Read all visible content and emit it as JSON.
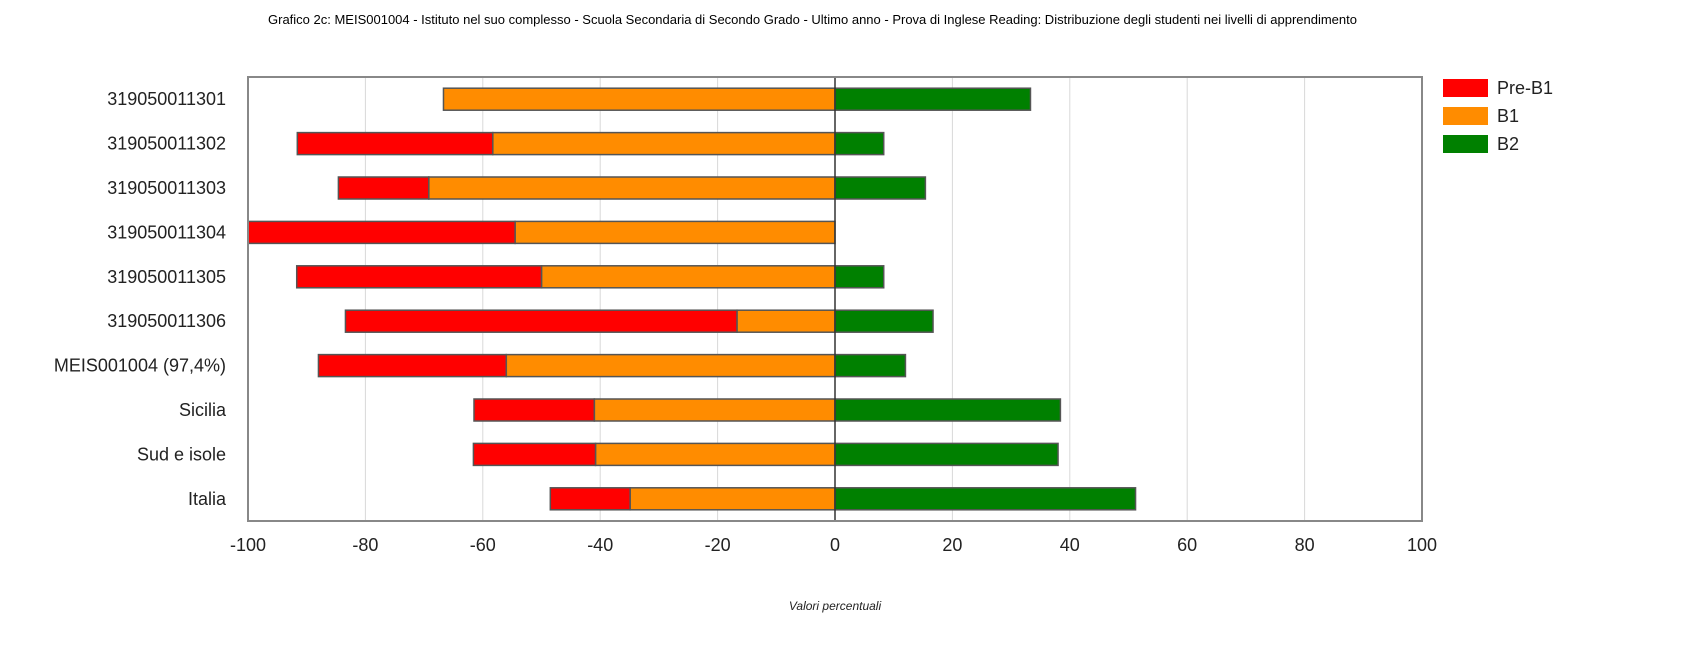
{
  "chart_data": {
    "type": "bar",
    "orientation": "horizontal",
    "stacking": "diverging",
    "title": "Grafico 2c: MEIS001004 - Istituto nel suo complesso - Scuola Secondaria di Secondo Grado - Ultimo anno - Prova di Inglese Reading: Distribuzione degli studenti nei livelli di apprendimento",
    "xlabel": "Valori percentuali",
    "ylabel": "",
    "xlim": [
      -100,
      100
    ],
    "xticks": [
      -100,
      -80,
      -60,
      -40,
      -20,
      0,
      20,
      40,
      60,
      80,
      100
    ],
    "grid": true,
    "legend_position": "top-right",
    "categories": [
      "319050011301",
      "319050011302",
      "319050011303",
      "319050011304",
      "319050011305",
      "319050011306",
      "MEIS001004 (97,4%)",
      "Sicilia",
      "Sud e isole",
      "Italia"
    ],
    "series": [
      {
        "name": "Pre-B1",
        "color": "#ff0000",
        "side": "negative",
        "values": [
          0,
          33.3,
          15.4,
          45.5,
          41.7,
          66.7,
          32,
          20.5,
          20.8,
          13.6
        ]
      },
      {
        "name": "B1",
        "color": "#ff8c00",
        "side": "negative",
        "values": [
          66.7,
          58.3,
          69.2,
          54.5,
          50,
          16.7,
          56,
          41,
          40.8,
          34.9
        ]
      },
      {
        "name": "B2",
        "color": "#008000",
        "side": "positive",
        "values": [
          33.3,
          8.3,
          15.4,
          0,
          8.3,
          16.7,
          12,
          38.4,
          38,
          51.2
        ]
      }
    ]
  }
}
